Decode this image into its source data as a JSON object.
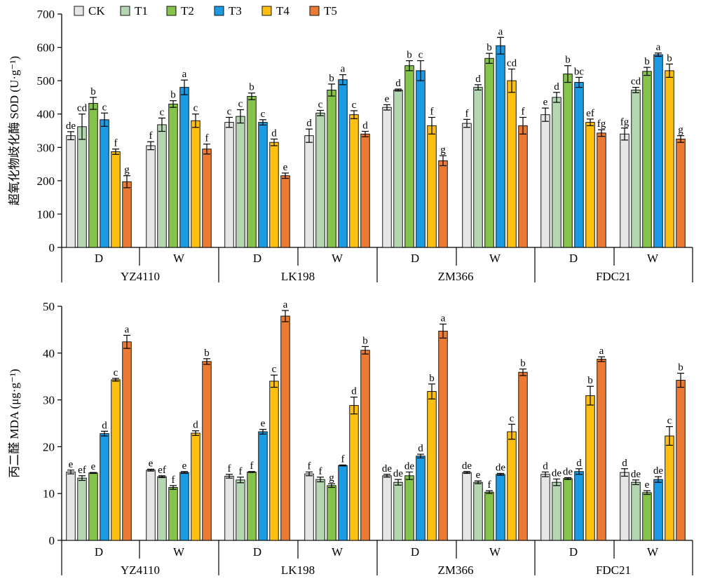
{
  "legend": {
    "items": [
      {
        "name": "CK",
        "color": "#e6e6e6"
      },
      {
        "name": "T1",
        "color": "#b4d6b3"
      },
      {
        "name": "T2",
        "color": "#86c34a"
      },
      {
        "name": "T3",
        "color": "#1c9be4"
      },
      {
        "name": "T4",
        "color": "#fdc012"
      },
      {
        "name": "T5",
        "color": "#eb7a35"
      }
    ]
  },
  "x_groups": [
    "D",
    "W",
    "D",
    "W",
    "D",
    "W",
    "D",
    "W"
  ],
  "varieties": [
    "YZ4110",
    "LK198",
    "ZM366",
    "FDC21"
  ],
  "chart_data": [
    {
      "type": "bar",
      "title": "",
      "ylabel": "超氧化物歧化酶 SOD (U·g⁻¹)",
      "ylim": [
        0,
        700
      ],
      "yticks": [
        0,
        100,
        200,
        300,
        400,
        500,
        600,
        700
      ],
      "grid": false,
      "legend_position": "top-left",
      "categories": [
        "YZ4110-D",
        "YZ4110-W",
        "LK198-D",
        "LK198-W",
        "ZM366-D",
        "ZM366-W",
        "FDC21-D",
        "FDC21-W"
      ],
      "series": [
        {
          "name": "CK",
          "values": [
            335,
            305,
            375,
            335,
            420,
            372,
            398,
            340
          ],
          "errors": [
            12,
            12,
            15,
            20,
            8,
            12,
            20,
            18
          ],
          "letters": [
            "de",
            "f",
            "c",
            "d",
            "e",
            "f",
            "e",
            "fg"
          ]
        },
        {
          "name": "T1",
          "values": [
            362,
            368,
            393,
            403,
            472,
            480,
            450,
            472
          ],
          "errors": [
            38,
            20,
            20,
            8,
            3,
            8,
            15,
            8
          ],
          "letters": [
            "cd",
            "c",
            "c",
            "c",
            "d",
            "d",
            "d",
            "cd"
          ]
        },
        {
          "name": "T2",
          "values": [
            432,
            430,
            453,
            472,
            545,
            567,
            520,
            528
          ],
          "errors": [
            18,
            10,
            10,
            18,
            15,
            15,
            25,
            12
          ],
          "letters": [
            "b",
            "b",
            "b",
            "b",
            "b",
            "b",
            "b",
            "b"
          ]
        },
        {
          "name": "T3",
          "values": [
            383,
            480,
            375,
            503,
            530,
            605,
            495,
            578
          ],
          "errors": [
            20,
            22,
            8,
            15,
            30,
            25,
            15,
            5
          ],
          "letters": [
            "c",
            "a",
            "c",
            "a",
            "c",
            "a",
            "bc",
            "a"
          ]
        },
        {
          "name": "T4",
          "values": [
            287,
            380,
            315,
            398,
            365,
            500,
            375,
            530
          ],
          "errors": [
            8,
            20,
            10,
            12,
            25,
            35,
            10,
            20
          ],
          "letters": [
            "f",
            "c",
            "d",
            "c",
            "f",
            "cd",
            "ef",
            "b"
          ]
        },
        {
          "name": "T5",
          "values": [
            197,
            295,
            215,
            340,
            260,
            365,
            343,
            325
          ],
          "errors": [
            18,
            15,
            8,
            8,
            15,
            25,
            10,
            10
          ],
          "letters": [
            "g",
            "f",
            "e",
            "d",
            "g",
            "f",
            "fg",
            "g"
          ]
        }
      ]
    },
    {
      "type": "bar",
      "title": "",
      "ylabel": "丙二醛 MDA (μg·g⁻¹)",
      "ylim": [
        0,
        50
      ],
      "yticks": [
        0,
        10,
        20,
        30,
        40,
        50
      ],
      "grid": false,
      "categories": [
        "YZ4110-D",
        "YZ4110-W",
        "LK198-D",
        "LK198-W",
        "ZM366-D",
        "ZM366-W",
        "FDC21-D",
        "FDC21-W"
      ],
      "series": [
        {
          "name": "CK",
          "values": [
            14.6,
            15.0,
            13.7,
            14.2,
            13.8,
            14.5,
            14.1,
            14.5
          ],
          "errors": [
            0.4,
            0.2,
            0.4,
            0.4,
            0.3,
            0.2,
            0.5,
            0.8
          ],
          "letters": [
            "e",
            "e",
            "f",
            "f",
            "de",
            "de",
            "d",
            "d"
          ]
        },
        {
          "name": "T1",
          "values": [
            13.3,
            13.6,
            12.9,
            13.0,
            12.4,
            12.4,
            12.4,
            12.4
          ],
          "errors": [
            0.5,
            0.2,
            0.6,
            0.5,
            0.6,
            0.3,
            0.7,
            0.5
          ],
          "letters": [
            "ef",
            "ef",
            "f",
            "f",
            "de",
            "e",
            "de",
            "de"
          ]
        },
        {
          "name": "T2",
          "values": [
            14.4,
            11.3,
            14.6,
            11.7,
            13.8,
            10.3,
            13.2,
            10.2
          ],
          "errors": [
            0.1,
            0.4,
            0.1,
            0.4,
            0.8,
            0.3,
            0.2,
            0.4
          ],
          "letters": [
            "e",
            "f",
            "f",
            "g",
            "de",
            "f",
            "de",
            "e"
          ]
        },
        {
          "name": "T3",
          "values": [
            22.8,
            14.5,
            23.2,
            16.0,
            18.0,
            14.1,
            14.7,
            13.0
          ],
          "errors": [
            0.5,
            0.2,
            0.5,
            0.1,
            0.4,
            0.2,
            0.6,
            0.6
          ],
          "letters": [
            "d",
            "e",
            "e",
            "f",
            "d",
            "de",
            "d",
            "de"
          ]
        },
        {
          "name": "T4",
          "values": [
            34.3,
            22.9,
            34.0,
            28.8,
            31.8,
            23.2,
            30.9,
            22.3
          ],
          "errors": [
            0.3,
            0.5,
            1.3,
            1.8,
            1.6,
            1.6,
            2.0,
            2.0
          ],
          "letters": [
            "c",
            "d",
            "c",
            "d",
            "b",
            "c",
            "b",
            "c"
          ]
        },
        {
          "name": "T5",
          "values": [
            42.4,
            38.2,
            47.9,
            40.6,
            44.7,
            35.9,
            38.7,
            34.2
          ],
          "errors": [
            1.4,
            0.6,
            1.2,
            0.8,
            1.5,
            0.7,
            0.5,
            1.5
          ],
          "letters": [
            "a",
            "b",
            "a",
            "b",
            "a",
            "b",
            "a",
            "b"
          ]
        }
      ]
    }
  ]
}
